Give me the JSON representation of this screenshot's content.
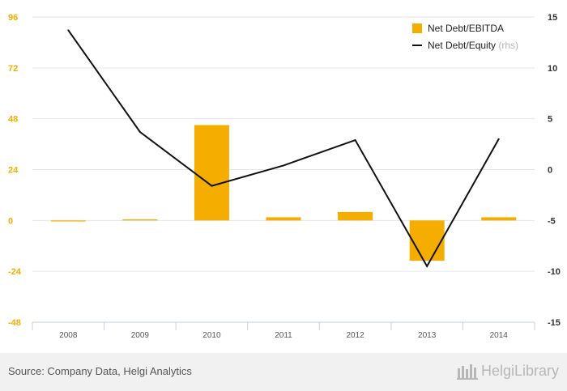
{
  "chart_data": {
    "type": "bar",
    "categories": [
      "2008",
      "2009",
      "2010",
      "2011",
      "2012",
      "2013",
      "2014"
    ],
    "series": [
      {
        "name": "Net Debt/EBITDA",
        "type": "bar",
        "axis": "left",
        "color": "#f5ad00",
        "values": [
          -0.3,
          0.5,
          45,
          1.5,
          4,
          -19,
          1.5
        ]
      },
      {
        "name": "Net Debt/Equity",
        "type": "line",
        "axis": "right",
        "color": "#111111",
        "values": [
          13.7,
          3.7,
          -1.6,
          0.4,
          2.9,
          -9.5,
          3.0
        ]
      }
    ],
    "left_axis": {
      "ylim": [
        -48,
        96
      ],
      "ticks": [
        "96",
        "72",
        "48",
        "24",
        "0",
        "-24",
        "-48"
      ],
      "color": "#f5ad00"
    },
    "right_axis": {
      "ylim": [
        -15,
        15
      ],
      "ticks": [
        "15",
        "10",
        "5",
        "0",
        "-5",
        "-10",
        "-15"
      ]
    },
    "legend": {
      "position": "top-right",
      "items": [
        {
          "label": "Net Debt/EBITDA",
          "suffix": ""
        },
        {
          "label": "Net Debt/Equity",
          "suffix": "(rhs)"
        }
      ]
    },
    "grid": true
  },
  "footer": {
    "source": "Source: Company Data, Helgi Analytics",
    "brand": "HelgiLibrary"
  }
}
